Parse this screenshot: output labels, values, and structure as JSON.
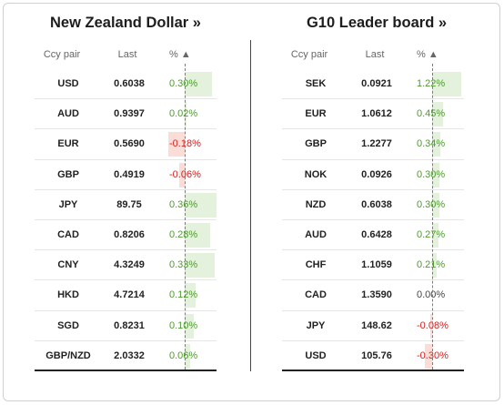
{
  "left": {
    "title": "New Zealand Dollar »",
    "headers": {
      "pair": "Ccy pair",
      "last": "Last",
      "pct": "% ▲"
    },
    "rows": [
      {
        "pair": "USD",
        "last": "0.6038",
        "pct": "0.30%",
        "value": 0.3
      },
      {
        "pair": "AUD",
        "last": "0.9397",
        "pct": "0.02%",
        "value": 0.02
      },
      {
        "pair": "EUR",
        "last": "0.5690",
        "pct": "-0.18%",
        "value": -0.18
      },
      {
        "pair": "GBP",
        "last": "0.4919",
        "pct": "-0.06%",
        "value": -0.06
      },
      {
        "pair": "JPY",
        "last": "89.75",
        "pct": "0.36%",
        "value": 0.36
      },
      {
        "pair": "CAD",
        "last": "0.8206",
        "pct": "0.28%",
        "value": 0.28
      },
      {
        "pair": "CNY",
        "last": "4.3249",
        "pct": "0.33%",
        "value": 0.33
      },
      {
        "pair": "HKD",
        "last": "4.7214",
        "pct": "0.12%",
        "value": 0.12
      },
      {
        "pair": "SGD",
        "last": "0.8231",
        "pct": "0.10%",
        "value": 0.1
      },
      {
        "pair": "GBP/NZD",
        "last": "2.0332",
        "pct": "0.06%",
        "value": 0.06
      }
    ]
  },
  "right": {
    "title": "G10 Leader board »",
    "headers": {
      "pair": "Ccy pair",
      "last": "Last",
      "pct": "% ▲"
    },
    "rows": [
      {
        "pair": "SEK",
        "last": "0.0921",
        "pct": "1.22%",
        "value": 1.22
      },
      {
        "pair": "EUR",
        "last": "1.0612",
        "pct": "0.45%",
        "value": 0.45
      },
      {
        "pair": "GBP",
        "last": "1.2277",
        "pct": "0.34%",
        "value": 0.34
      },
      {
        "pair": "NOK",
        "last": "0.0926",
        "pct": "0.30%",
        "value": 0.3
      },
      {
        "pair": "NZD",
        "last": "0.6038",
        "pct": "0.30%",
        "value": 0.3
      },
      {
        "pair": "AUD",
        "last": "0.6428",
        "pct": "0.27%",
        "value": 0.27
      },
      {
        "pair": "CHF",
        "last": "1.1059",
        "pct": "0.21%",
        "value": 0.21
      },
      {
        "pair": "CAD",
        "last": "1.3590",
        "pct": "0.00%",
        "value": 0.0
      },
      {
        "pair": "JPY",
        "last": "148.62",
        "pct": "-0.08%",
        "value": -0.08
      },
      {
        "pair": "USD",
        "last": "105.76",
        "pct": "-0.30%",
        "value": -0.3
      }
    ]
  },
  "colors": {
    "positive_text": "#4e9a2e",
    "negative_text": "#d42020",
    "positive_bar": "#e3f1dd",
    "negative_bar": "#f9ddd6"
  }
}
